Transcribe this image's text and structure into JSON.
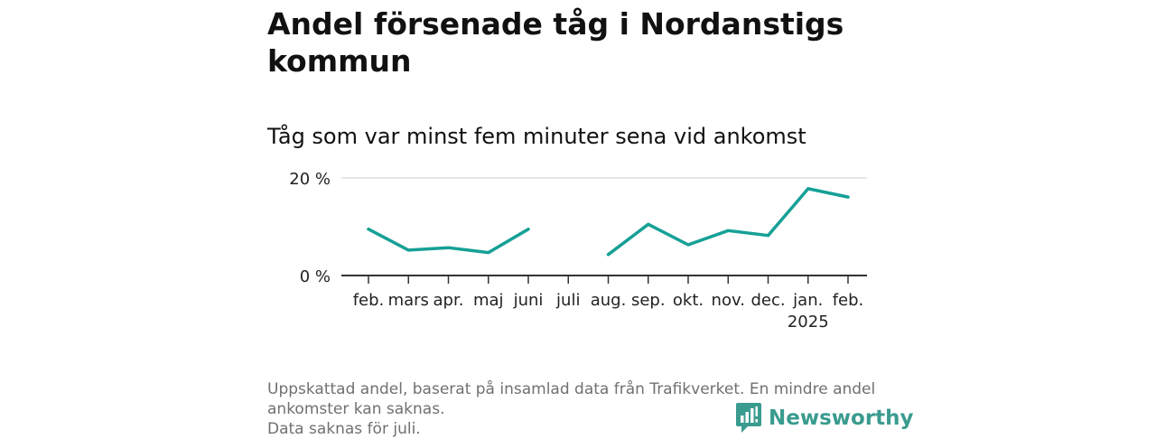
{
  "title": "Andel försenade tåg i Nordanstigs kommun",
  "subtitle": "Tåg som var minst fem minuter sena vid ankomst",
  "footer": {
    "line1": "Uppskattad andel, baserat på insamlad data från Trafikverket. En mindre andel ankomster kan saknas.",
    "line2": "Data saknas för juli."
  },
  "brand": {
    "name": "Newsworthy",
    "icon": "newsworthy-logo-icon",
    "color": "#3a9b8f"
  },
  "colors": {
    "line": "#16a096",
    "grid": "#dddddd",
    "axis": "#333333"
  },
  "chart_data": {
    "type": "line",
    "categories": [
      "feb.",
      "mars",
      "apr.",
      "maj",
      "juni",
      "juli",
      "aug.",
      "sep.",
      "okt.",
      "nov.",
      "dec.",
      "jan.",
      "feb."
    ],
    "year_label": {
      "category_index": 11,
      "text": "2025"
    },
    "series": [
      {
        "values": [
          9.5,
          5.2,
          5.7,
          4.7,
          9.5,
          null,
          4.3,
          10.5,
          6.3,
          9.2,
          8.2,
          17.8,
          16.1
        ]
      }
    ],
    "y_ticks": [
      {
        "value": 0,
        "label": "0 %"
      },
      {
        "value": 20,
        "label": "20 %"
      }
    ],
    "ylim": [
      0,
      20
    ],
    "grid": true,
    "legend": "none"
  }
}
